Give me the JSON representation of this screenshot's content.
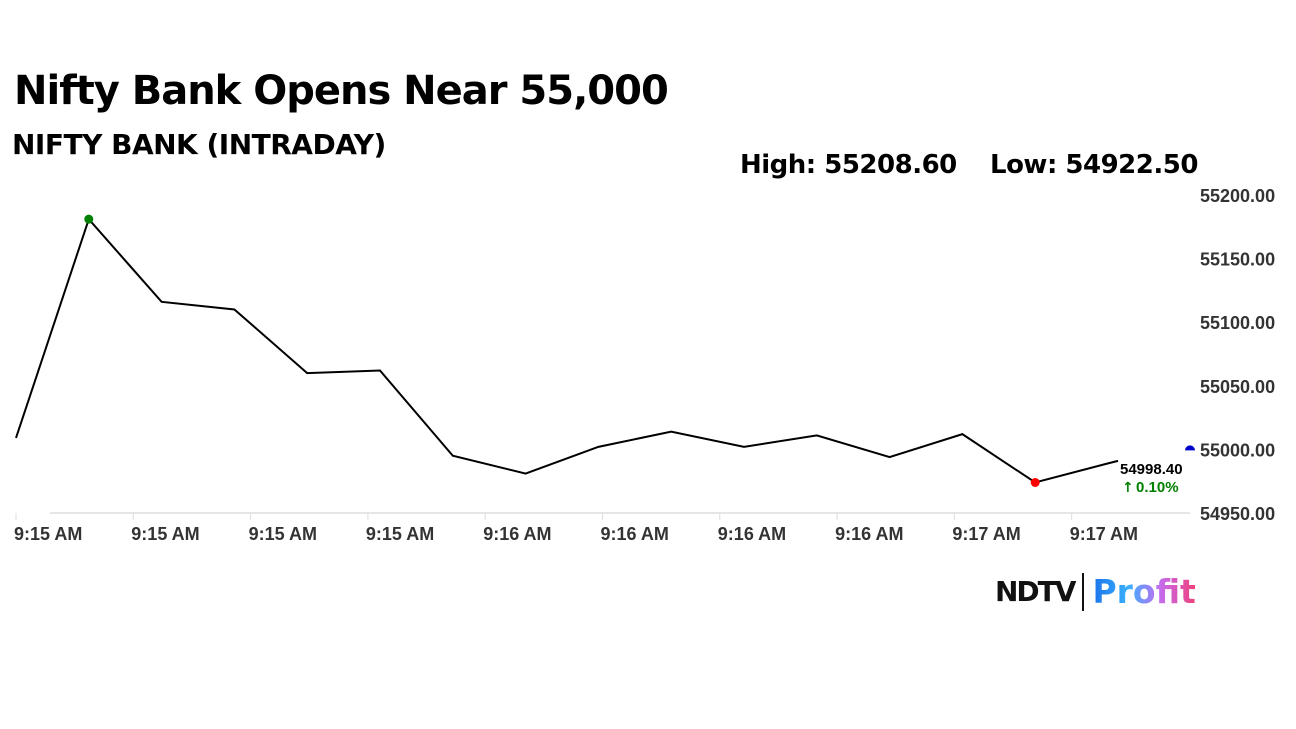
{
  "title": "Nifty Bank Opens Near 55,000",
  "subtitle": "NIFTY BANK (INTRADAY)",
  "high_label": "High: 55208.60",
  "low_label": "Low: 54922.50",
  "last_value": "54998.40",
  "change": "0.10%",
  "change_icon": "arrow-up-icon",
  "logo": {
    "left": "NDTV",
    "right": "Profit"
  },
  "colors": {
    "line": "#000000",
    "high_marker": "#008000",
    "low_marker": "#ff0000",
    "prev_close_marker": "#0000cc",
    "change_positive": "#008000"
  },
  "chart_data": {
    "type": "line",
    "title": "NIFTY BANK (INTRADAY)",
    "xlabel": "",
    "ylabel": "",
    "x_tick_labels": [
      "9:15 AM",
      "9:15 AM",
      "9:15 AM",
      "9:15 AM",
      "9:16 AM",
      "9:16 AM",
      "9:16 AM",
      "9:16 AM",
      "9:17 AM",
      "9:17 AM"
    ],
    "y_tick_labels": [
      "55200.00",
      "55150.00",
      "55100.00",
      "55050.00",
      "55000.00",
      "54950.00"
    ],
    "ylim": [
      54950,
      55200
    ],
    "y_axis_position": "right",
    "grid": false,
    "series": [
      {
        "values": [
          55009,
          55181,
          55116,
          55110,
          55060,
          55062,
          54995,
          54981,
          55002,
          55014,
          55002,
          55011,
          54994,
          55012,
          54974,
          54989,
          54991
        ]
      }
    ],
    "markers": {
      "max_index": 1,
      "min_index": 14,
      "previous_close": 55000
    }
  }
}
